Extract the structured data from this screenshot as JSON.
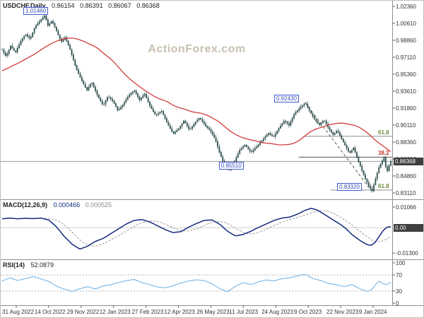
{
  "watermark": "ActionForex.com",
  "main": {
    "title": "USDCHF,Daily",
    "ohlc": {
      "open": "0.86154",
      "high": "0.86391",
      "low": "0.86067",
      "close": "0.86368"
    }
  },
  "macd": {
    "title": "MACD(12,26,9)",
    "value": "0.000466",
    "signal_value": "0.000525",
    "zero_label": "0.00"
  },
  "rsi": {
    "title": "RSI(14)",
    "value": "52.0879"
  },
  "colors": {
    "candle": "#2F4F4F",
    "ma_line": "#d23b3b",
    "macd_line": "#14297e",
    "macd_signal": "#9a9a9a",
    "rsi_line": "#69aee2",
    "separator": "#909090",
    "grid": "#9a9a9a",
    "annotation_border": "#3c5bd2",
    "price_tag_bg": "#3f3f3f"
  },
  "chart_data": [
    {
      "type": "candlestick",
      "title": "USDCHF Daily candlesticks with red moving average",
      "ylim": [
        0.8311,
        1.0236
      ],
      "y_axis_labels": [
        "1.02360",
        "1.00610",
        "0.98860",
        "0.97110",
        "0.95360",
        "0.93610",
        "0.91860",
        "0.90110",
        "0.88360",
        "0.86610",
        "0.84860",
        "0.83110"
      ],
      "x_labels": [
        "31 Aug 2022",
        "14 Oct 2022",
        "29 Nov 2022",
        "12 Jan 2023",
        "27 Feb 2023",
        "12 Apr 2023",
        "26 May 2023",
        "11 Jul 2023",
        "24 Aug 2023",
        "9 Oct 2023",
        "22 Nov 2023",
        "9 Jan 2024"
      ],
      "current_price": "0.86368",
      "close_path": [
        [
          0.0,
          0.979
        ],
        [
          0.01,
          0.972
        ],
        [
          0.022,
          0.983
        ],
        [
          0.034,
          0.976
        ],
        [
          0.048,
          0.988
        ],
        [
          0.06,
          0.995
        ],
        [
          0.072,
          0.99
        ],
        [
          0.085,
          1.003
        ],
        [
          0.1,
          1.01
        ],
        [
          0.11,
          1.0146
        ],
        [
          0.118,
          1.004
        ],
        [
          0.128,
          1.009
        ],
        [
          0.14,
          0.998
        ],
        [
          0.152,
          0.987
        ],
        [
          0.162,
          0.992
        ],
        [
          0.175,
          0.979
        ],
        [
          0.19,
          0.96
        ],
        [
          0.205,
          0.947
        ],
        [
          0.218,
          0.937
        ],
        [
          0.23,
          0.946
        ],
        [
          0.245,
          0.932
        ],
        [
          0.26,
          0.921
        ],
        [
          0.272,
          0.931
        ],
        [
          0.285,
          0.926
        ],
        [
          0.298,
          0.916
        ],
        [
          0.312,
          0.923
        ],
        [
          0.326,
          0.932
        ],
        [
          0.34,
          0.937
        ],
        [
          0.354,
          0.927
        ],
        [
          0.366,
          0.934
        ],
        [
          0.38,
          0.921
        ],
        [
          0.395,
          0.911
        ],
        [
          0.41,
          0.916
        ],
        [
          0.425,
          0.903
        ],
        [
          0.44,
          0.892
        ],
        [
          0.455,
          0.898
        ],
        [
          0.468,
          0.906
        ],
        [
          0.482,
          0.896
        ],
        [
          0.495,
          0.903
        ],
        [
          0.508,
          0.909
        ],
        [
          0.522,
          0.901
        ],
        [
          0.535,
          0.896
        ],
        [
          0.548,
          0.887
        ],
        [
          0.56,
          0.872
        ],
        [
          0.572,
          0.86
        ],
        [
          0.585,
          0.8551
        ],
        [
          0.598,
          0.864
        ],
        [
          0.612,
          0.876
        ],
        [
          0.625,
          0.881
        ],
        [
          0.64,
          0.873
        ],
        [
          0.655,
          0.879
        ],
        [
          0.67,
          0.886
        ],
        [
          0.685,
          0.893
        ],
        [
          0.698,
          0.889
        ],
        [
          0.712,
          0.898
        ],
        [
          0.726,
          0.906
        ],
        [
          0.738,
          0.901
        ],
        [
          0.752,
          0.913
        ],
        [
          0.766,
          0.919
        ],
        [
          0.78,
          0.9243
        ],
        [
          0.792,
          0.915
        ],
        [
          0.804,
          0.907
        ],
        [
          0.816,
          0.901
        ],
        [
          0.828,
          0.907
        ],
        [
          0.84,
          0.898
        ],
        [
          0.852,
          0.891
        ],
        [
          0.862,
          0.896
        ],
        [
          0.872,
          0.888
        ],
        [
          0.884,
          0.879
        ],
        [
          0.894,
          0.872
        ],
        [
          0.904,
          0.878
        ],
        [
          0.914,
          0.866
        ],
        [
          0.924,
          0.856
        ],
        [
          0.934,
          0.846
        ],
        [
          0.944,
          0.838
        ],
        [
          0.952,
          0.8332
        ],
        [
          0.96,
          0.845
        ],
        [
          0.968,
          0.856
        ],
        [
          0.976,
          0.863
        ],
        [
          0.983,
          0.868
        ],
        [
          0.986,
          0.86
        ],
        [
          0.99,
          0.852
        ],
        [
          0.994,
          0.858
        ],
        [
          1.0,
          0.86368
        ]
      ],
      "annotations": [
        {
          "label": "1.01460",
          "price": 1.0146,
          "xfrac": 0.055
        },
        {
          "label": "0.92430",
          "price": 0.9243,
          "xfrac": 0.7
        },
        {
          "label": "0.85510",
          "price": 0.8551,
          "xfrac": 0.558
        },
        {
          "label": "0.83320",
          "price": 0.8332,
          "xfrac": 0.862
        }
      ],
      "fib_levels": [
        {
          "label": "61.8",
          "price": 0.8895,
          "xfrac": 0.775,
          "text_color": "#6e8b3d",
          "line_color": "#8a8a8a"
        },
        {
          "label": "38.2",
          "price": 0.868,
          "xfrac": 0.763,
          "text_color": "#c0392b",
          "line_color": "#555555"
        },
        {
          "label": "61.8",
          "price": 0.834,
          "xfrac": 0.845,
          "text_color": "#6e8b3d",
          "line_color": "#8a8a8a"
        }
      ],
      "trendline": {
        "from": [
          0.78,
          0.9243
        ],
        "to": [
          0.95,
          0.8332
        ]
      }
    },
    {
      "type": "line",
      "title": "MACD(12,26,9)",
      "ylim": [
        -0.013,
        0.01066
      ],
      "y_axis_labels": [
        "0.01066",
        "0.00",
        "-0.01300"
      ],
      "macd_path": [
        [
          0.0,
          0.0046
        ],
        [
          0.02,
          0.005
        ],
        [
          0.04,
          0.0046
        ],
        [
          0.06,
          0.0049
        ],
        [
          0.08,
          0.0047
        ],
        [
          0.1,
          0.005
        ],
        [
          0.12,
          0.004
        ],
        [
          0.14,
          0.0005
        ],
        [
          0.16,
          -0.0045
        ],
        [
          0.18,
          -0.0085
        ],
        [
          0.2,
          -0.011
        ],
        [
          0.22,
          -0.0095
        ],
        [
          0.24,
          -0.007
        ],
        [
          0.26,
          -0.0055
        ],
        [
          0.28,
          -0.003
        ],
        [
          0.3,
          -0.0005
        ],
        [
          0.32,
          0.002
        ],
        [
          0.34,
          0.0038
        ],
        [
          0.36,
          0.0042
        ],
        [
          0.38,
          0.003
        ],
        [
          0.4,
          0.001
        ],
        [
          0.42,
          -0.001
        ],
        [
          0.44,
          -0.0025
        ],
        [
          0.46,
          -0.002
        ],
        [
          0.48,
          0.0003
        ],
        [
          0.5,
          0.0022
        ],
        [
          0.52,
          0.0038
        ],
        [
          0.54,
          0.004
        ],
        [
          0.56,
          0.0018
        ],
        [
          0.58,
          -0.0018
        ],
        [
          0.6,
          -0.0042
        ],
        [
          0.62,
          -0.0035
        ],
        [
          0.64,
          -0.0018
        ],
        [
          0.66,
          0.0002
        ],
        [
          0.68,
          0.002
        ],
        [
          0.7,
          0.0038
        ],
        [
          0.72,
          0.005
        ],
        [
          0.74,
          0.0055
        ],
        [
          0.76,
          0.007
        ],
        [
          0.78,
          0.009
        ],
        [
          0.795,
          0.01
        ],
        [
          0.81,
          0.0092
        ],
        [
          0.83,
          0.0068
        ],
        [
          0.85,
          0.0042
        ],
        [
          0.87,
          0.0018
        ],
        [
          0.885,
          -0.0005
        ],
        [
          0.9,
          -0.0035
        ],
        [
          0.92,
          -0.0065
        ],
        [
          0.94,
          -0.0088
        ],
        [
          0.95,
          -0.009
        ],
        [
          0.96,
          -0.0075
        ],
        [
          0.97,
          -0.0045
        ],
        [
          0.98,
          -0.0015
        ],
        [
          0.99,
          0.0003
        ],
        [
          1.0,
          0.0005
        ]
      ]
    },
    {
      "type": "line",
      "title": "RSI(14)",
      "ylim": [
        0,
        100
      ],
      "y_axis_labels": [
        "100",
        "70",
        "30",
        "0"
      ],
      "levels": [
        70,
        30
      ],
      "rsi_path": [
        [
          0.0,
          55
        ],
        [
          0.02,
          63
        ],
        [
          0.04,
          56
        ],
        [
          0.06,
          61
        ],
        [
          0.08,
          66
        ],
        [
          0.1,
          60
        ],
        [
          0.12,
          54
        ],
        [
          0.14,
          42
        ],
        [
          0.16,
          35
        ],
        [
          0.18,
          29
        ],
        [
          0.2,
          36
        ],
        [
          0.22,
          41
        ],
        [
          0.24,
          35
        ],
        [
          0.26,
          43
        ],
        [
          0.28,
          46
        ],
        [
          0.3,
          51
        ],
        [
          0.32,
          56
        ],
        [
          0.34,
          59
        ],
        [
          0.36,
          51
        ],
        [
          0.38,
          46
        ],
        [
          0.4,
          40
        ],
        [
          0.42,
          38
        ],
        [
          0.44,
          43
        ],
        [
          0.46,
          50
        ],
        [
          0.48,
          55
        ],
        [
          0.5,
          58
        ],
        [
          0.52,
          56
        ],
        [
          0.54,
          48
        ],
        [
          0.56,
          36
        ],
        [
          0.58,
          28
        ],
        [
          0.6,
          42
        ],
        [
          0.62,
          51
        ],
        [
          0.64,
          46
        ],
        [
          0.66,
          53
        ],
        [
          0.68,
          58
        ],
        [
          0.7,
          55
        ],
        [
          0.72,
          61
        ],
        [
          0.74,
          63
        ],
        [
          0.76,
          68
        ],
        [
          0.78,
          72
        ],
        [
          0.8,
          61
        ],
        [
          0.82,
          56
        ],
        [
          0.84,
          49
        ],
        [
          0.86,
          46
        ],
        [
          0.88,
          41
        ],
        [
          0.9,
          46
        ],
        [
          0.92,
          36
        ],
        [
          0.94,
          29
        ],
        [
          0.95,
          33
        ],
        [
          0.96,
          45
        ],
        [
          0.97,
          55
        ],
        [
          0.98,
          48
        ],
        [
          0.99,
          46
        ],
        [
          1.0,
          52.09
        ]
      ]
    }
  ]
}
